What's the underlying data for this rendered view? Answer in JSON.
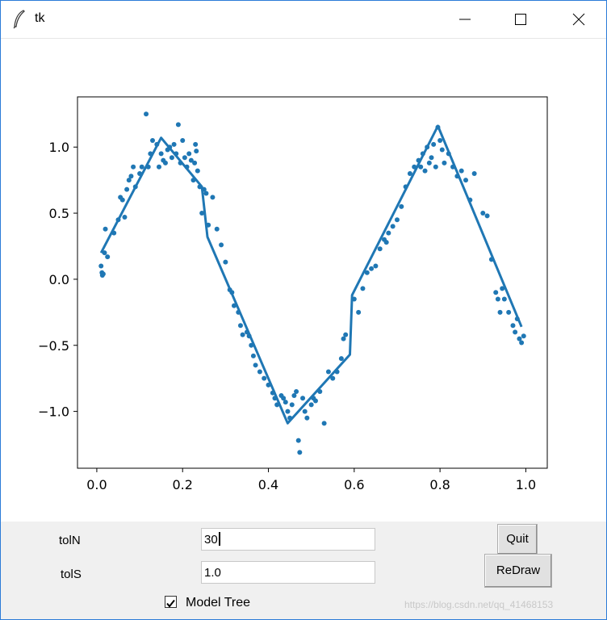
{
  "window": {
    "title": "tk"
  },
  "form": {
    "toln_label": "tolN",
    "toln_value": "30",
    "tols_label": "tolS",
    "tols_value": "1.0",
    "quit_label": "Quit",
    "redraw_label": "ReDraw",
    "model_tree_label": "Model Tree",
    "model_tree_checked": true
  },
  "watermark": "https://blog.csdn.net/qq_41468153",
  "chart_data": {
    "type": "scatter",
    "title": "",
    "xlabel": "",
    "ylabel": "",
    "xlim": [
      -0.045,
      1.05
    ],
    "ylim": [
      -1.43,
      1.38
    ],
    "x_ticks": [
      0.0,
      0.2,
      0.4,
      0.6,
      0.8,
      1.0
    ],
    "x_tick_labels": [
      "0.0",
      "0.2",
      "0.4",
      "0.6",
      "0.8",
      "1.0"
    ],
    "y_ticks": [
      1.0,
      0.5,
      0.0,
      -0.5,
      -1.0
    ],
    "y_tick_labels": [
      "1.0",
      "0.5",
      "0.0",
      "−0.5",
      "−1.0"
    ],
    "grid": false,
    "color": "#1f77b4",
    "series": [
      {
        "kind": "scatter",
        "points": [
          [
            0.01,
            0.1
          ],
          [
            0.012,
            0.05
          ],
          [
            0.013,
            0.03
          ],
          [
            0.015,
            0.04
          ],
          [
            0.018,
            0.2
          ],
          [
            0.02,
            0.38
          ],
          [
            0.025,
            0.17
          ],
          [
            0.04,
            0.35
          ],
          [
            0.05,
            0.45
          ],
          [
            0.055,
            0.62
          ],
          [
            0.06,
            0.6
          ],
          [
            0.065,
            0.47
          ],
          [
            0.07,
            0.68
          ],
          [
            0.075,
            0.75
          ],
          [
            0.08,
            0.78
          ],
          [
            0.085,
            0.85
          ],
          [
            0.09,
            0.7
          ],
          [
            0.1,
            0.8
          ],
          [
            0.105,
            0.85
          ],
          [
            0.115,
            1.25
          ],
          [
            0.12,
            0.85
          ],
          [
            0.125,
            0.95
          ],
          [
            0.13,
            1.05
          ],
          [
            0.14,
            1.02
          ],
          [
            0.145,
            0.85
          ],
          [
            0.15,
            0.95
          ],
          [
            0.155,
            0.9
          ],
          [
            0.16,
            0.88
          ],
          [
            0.165,
            0.98
          ],
          [
            0.17,
            1.0
          ],
          [
            0.175,
            0.92
          ],
          [
            0.18,
            1.02
          ],
          [
            0.185,
            0.95
          ],
          [
            0.19,
            1.17
          ],
          [
            0.195,
            0.88
          ],
          [
            0.2,
            1.05
          ],
          [
            0.205,
            0.92
          ],
          [
            0.21,
            0.85
          ],
          [
            0.215,
            0.95
          ],
          [
            0.22,
            0.9
          ],
          [
            0.225,
            0.75
          ],
          [
            0.228,
            0.88
          ],
          [
            0.23,
            1.02
          ],
          [
            0.232,
            0.97
          ],
          [
            0.235,
            0.82
          ],
          [
            0.24,
            0.7
          ],
          [
            0.245,
            0.5
          ],
          [
            0.25,
            0.68
          ],
          [
            0.255,
            0.65
          ],
          [
            0.26,
            0.41
          ],
          [
            0.27,
            0.62
          ],
          [
            0.28,
            0.38
          ],
          [
            0.29,
            0.26
          ],
          [
            0.3,
            0.13
          ],
          [
            0.31,
            -0.08
          ],
          [
            0.315,
            -0.1
          ],
          [
            0.32,
            -0.2
          ],
          [
            0.33,
            -0.25
          ],
          [
            0.335,
            -0.35
          ],
          [
            0.34,
            -0.42
          ],
          [
            0.35,
            -0.4
          ],
          [
            0.355,
            -0.43
          ],
          [
            0.36,
            -0.5
          ],
          [
            0.365,
            -0.58
          ],
          [
            0.37,
            -0.65
          ],
          [
            0.38,
            -0.7
          ],
          [
            0.39,
            -0.75
          ],
          [
            0.4,
            -0.8
          ],
          [
            0.41,
            -0.86
          ],
          [
            0.415,
            -0.9
          ],
          [
            0.42,
            -0.95
          ],
          [
            0.43,
            -0.88
          ],
          [
            0.435,
            -0.9
          ],
          [
            0.44,
            -0.93
          ],
          [
            0.445,
            -1.0
          ],
          [
            0.45,
            -1.05
          ],
          [
            0.455,
            -0.95
          ],
          [
            0.46,
            -0.88
          ],
          [
            0.465,
            -0.85
          ],
          [
            0.47,
            -1.22
          ],
          [
            0.473,
            -1.31
          ],
          [
            0.48,
            -0.9
          ],
          [
            0.485,
            -1.0
          ],
          [
            0.49,
            -1.05
          ],
          [
            0.5,
            -0.95
          ],
          [
            0.505,
            -0.9
          ],
          [
            0.51,
            -0.92
          ],
          [
            0.52,
            -0.85
          ],
          [
            0.53,
            -1.09
          ],
          [
            0.54,
            -0.7
          ],
          [
            0.55,
            -0.75
          ],
          [
            0.56,
            -0.7
          ],
          [
            0.57,
            -0.6
          ],
          [
            0.575,
            -0.45
          ],
          [
            0.58,
            -0.42
          ],
          [
            0.6,
            -0.15
          ],
          [
            0.61,
            -0.25
          ],
          [
            0.62,
            -0.07
          ],
          [
            0.63,
            0.05
          ],
          [
            0.64,
            0.08
          ],
          [
            0.65,
            0.1
          ],
          [
            0.66,
            0.23
          ],
          [
            0.67,
            0.3
          ],
          [
            0.675,
            0.28
          ],
          [
            0.68,
            0.35
          ],
          [
            0.69,
            0.4
          ],
          [
            0.7,
            0.45
          ],
          [
            0.71,
            0.55
          ],
          [
            0.72,
            0.7
          ],
          [
            0.73,
            0.8
          ],
          [
            0.74,
            0.85
          ],
          [
            0.75,
            0.9
          ],
          [
            0.755,
            0.85
          ],
          [
            0.76,
            0.95
          ],
          [
            0.765,
            0.82
          ],
          [
            0.77,
            1.0
          ],
          [
            0.775,
            0.88
          ],
          [
            0.78,
            0.92
          ],
          [
            0.785,
            1.02
          ],
          [
            0.79,
            0.85
          ],
          [
            0.795,
            1.15
          ],
          [
            0.8,
            1.05
          ],
          [
            0.805,
            0.98
          ],
          [
            0.81,
            0.88
          ],
          [
            0.82,
            0.95
          ],
          [
            0.83,
            0.85
          ],
          [
            0.84,
            0.78
          ],
          [
            0.85,
            0.82
          ],
          [
            0.86,
            0.75
          ],
          [
            0.87,
            0.6
          ],
          [
            0.88,
            0.8
          ],
          [
            0.9,
            0.5
          ],
          [
            0.91,
            0.48
          ],
          [
            0.92,
            0.15
          ],
          [
            0.93,
            -0.1
          ],
          [
            0.935,
            -0.15
          ],
          [
            0.94,
            -0.25
          ],
          [
            0.945,
            -0.07
          ],
          [
            0.95,
            -0.15
          ],
          [
            0.96,
            -0.25
          ],
          [
            0.97,
            -0.35
          ],
          [
            0.975,
            -0.4
          ],
          [
            0.98,
            -0.3
          ],
          [
            0.985,
            -0.45
          ],
          [
            0.99,
            -0.48
          ],
          [
            0.995,
            -0.43
          ]
        ]
      },
      {
        "kind": "line",
        "points": [
          [
            0.01,
            0.2
          ],
          [
            0.15,
            1.07
          ],
          [
            0.245,
            0.7
          ],
          [
            0.258,
            0.32
          ],
          [
            0.445,
            -1.09
          ],
          [
            0.59,
            -0.57
          ],
          [
            0.595,
            -0.12
          ],
          [
            0.795,
            1.16
          ],
          [
            0.99,
            -0.36
          ]
        ]
      }
    ]
  }
}
